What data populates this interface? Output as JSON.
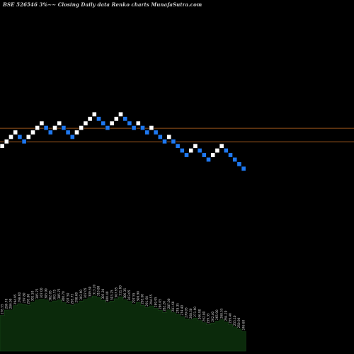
{
  "chart_data": {
    "type": "renko",
    "title": "BSE 526546  3%~~ Closing Daily data  Renko  charts MunafaSutra.com",
    "xlabel": "",
    "ylabel": "",
    "grid": false,
    "colors": {
      "background": "#000000",
      "up_brick": "#ffffff",
      "down_brick": "#1e78f0",
      "reference_line": "#c06a22",
      "volume_fill": "#0b2a0b",
      "volume_outline": "#1a4a1a"
    },
    "reference_lines": [
      1,
      4
    ],
    "bricks": [
      {
        "dir": "up",
        "level": 0
      },
      {
        "dir": "up",
        "level": 1
      },
      {
        "dir": "up",
        "level": 2
      },
      {
        "dir": "up",
        "level": 3
      },
      {
        "dir": "down",
        "level": 2
      },
      {
        "dir": "down",
        "level": 1
      },
      {
        "dir": "up",
        "level": 2
      },
      {
        "dir": "up",
        "level": 3
      },
      {
        "dir": "up",
        "level": 4
      },
      {
        "dir": "up",
        "level": 5
      },
      {
        "dir": "down",
        "level": 4
      },
      {
        "dir": "down",
        "level": 3
      },
      {
        "dir": "up",
        "level": 4
      },
      {
        "dir": "up",
        "level": 5
      },
      {
        "dir": "down",
        "level": 4
      },
      {
        "dir": "down",
        "level": 3
      },
      {
        "dir": "down",
        "level": 2
      },
      {
        "dir": "up",
        "level": 3
      },
      {
        "dir": "up",
        "level": 4
      },
      {
        "dir": "up",
        "level": 5
      },
      {
        "dir": "up",
        "level": 6
      },
      {
        "dir": "up",
        "level": 7
      },
      {
        "dir": "down",
        "level": 6
      },
      {
        "dir": "down",
        "level": 5
      },
      {
        "dir": "down",
        "level": 4
      },
      {
        "dir": "up",
        "level": 5
      },
      {
        "dir": "up",
        "level": 6
      },
      {
        "dir": "up",
        "level": 7
      },
      {
        "dir": "down",
        "level": 6
      },
      {
        "dir": "down",
        "level": 5
      },
      {
        "dir": "down",
        "level": 4
      },
      {
        "dir": "up",
        "level": 5
      },
      {
        "dir": "down",
        "level": 4
      },
      {
        "dir": "down",
        "level": 3
      },
      {
        "dir": "up",
        "level": 4
      },
      {
        "dir": "down",
        "level": 3
      },
      {
        "dir": "down",
        "level": 2
      },
      {
        "dir": "down",
        "level": 1
      },
      {
        "dir": "up",
        "level": 2
      },
      {
        "dir": "down",
        "level": 1
      },
      {
        "dir": "down",
        "level": 0
      },
      {
        "dir": "down",
        "level": -1
      },
      {
        "dir": "down",
        "level": -2
      },
      {
        "dir": "up",
        "level": -1
      },
      {
        "dir": "up",
        "level": 0
      },
      {
        "dir": "down",
        "level": -1
      },
      {
        "dir": "down",
        "level": -2
      },
      {
        "dir": "down",
        "level": -3
      },
      {
        "dir": "up",
        "level": -2
      },
      {
        "dir": "up",
        "level": -1
      },
      {
        "dir": "up",
        "level": 0
      },
      {
        "dir": "down",
        "level": -1
      },
      {
        "dir": "down",
        "level": -2
      },
      {
        "dir": "down",
        "level": -3
      },
      {
        "dir": "down",
        "level": -4
      },
      {
        "dir": "down",
        "level": -5
      }
    ],
    "volume_labels": [
      "276.55",
      "286.70",
      "286.90",
      "294.95",
      "298.60",
      "297.80",
      "295.80",
      "301.50",
      "305.75",
      "307.00",
      "305.90",
      "302.05",
      "303.75",
      "305.75",
      "300.70",
      "297.50",
      "295.75",
      "298.60",
      "303.60",
      "307.05",
      "309.60",
      "313.20",
      "310.80",
      "305.20",
      "300.40",
      "303.25",
      "307.95",
      "311.60",
      "306.35",
      "303.05",
      "297.55",
      "300.90",
      "295.60",
      "291.60",
      "294.55",
      "289.95",
      "286.05",
      "282.20",
      "287.00",
      "281.60",
      "278.35",
      "274.40",
      "270.05",
      "268.50",
      "271.60",
      "266.90",
      "262.80",
      "259.35",
      "262.40",
      "265.90",
      "268.55",
      "264.20",
      "259.40",
      "255.10",
      "250.90",
      "246.60"
    ]
  }
}
